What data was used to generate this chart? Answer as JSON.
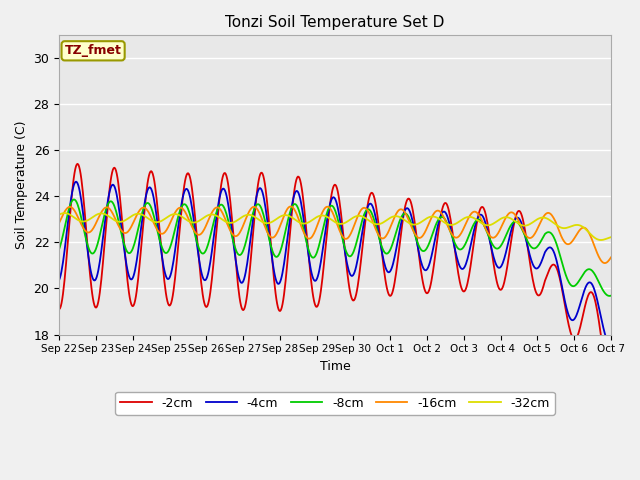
{
  "title": "Tonzi Soil Temperature Set D",
  "xlabel": "Time",
  "ylabel": "Soil Temperature (C)",
  "ylim": [
    18,
    31
  ],
  "yticks": [
    18,
    20,
    22,
    24,
    26,
    28,
    30
  ],
  "bg_color": "#e8e8e8",
  "fig_color": "#f0f0f0",
  "series_colors": {
    "-2cm": "#dd0000",
    "-4cm": "#0000cc",
    "-8cm": "#00cc00",
    "-16cm": "#ff8800",
    "-32cm": "#dddd00"
  },
  "legend_label": "TZ_fmet",
  "x_tick_labels": [
    "Sep 22",
    "Sep 23",
    "Sep 24",
    "Sep 25",
    "Sep 26",
    "Sep 27",
    "Sep 28",
    "Sep 29",
    "Sep 30",
    "Oct 1",
    "Oct 2",
    "Oct 3",
    "Oct 4",
    "Oct 5",
    "Oct 6",
    "Oct 7"
  ],
  "n_points": 720,
  "total_days": 15
}
